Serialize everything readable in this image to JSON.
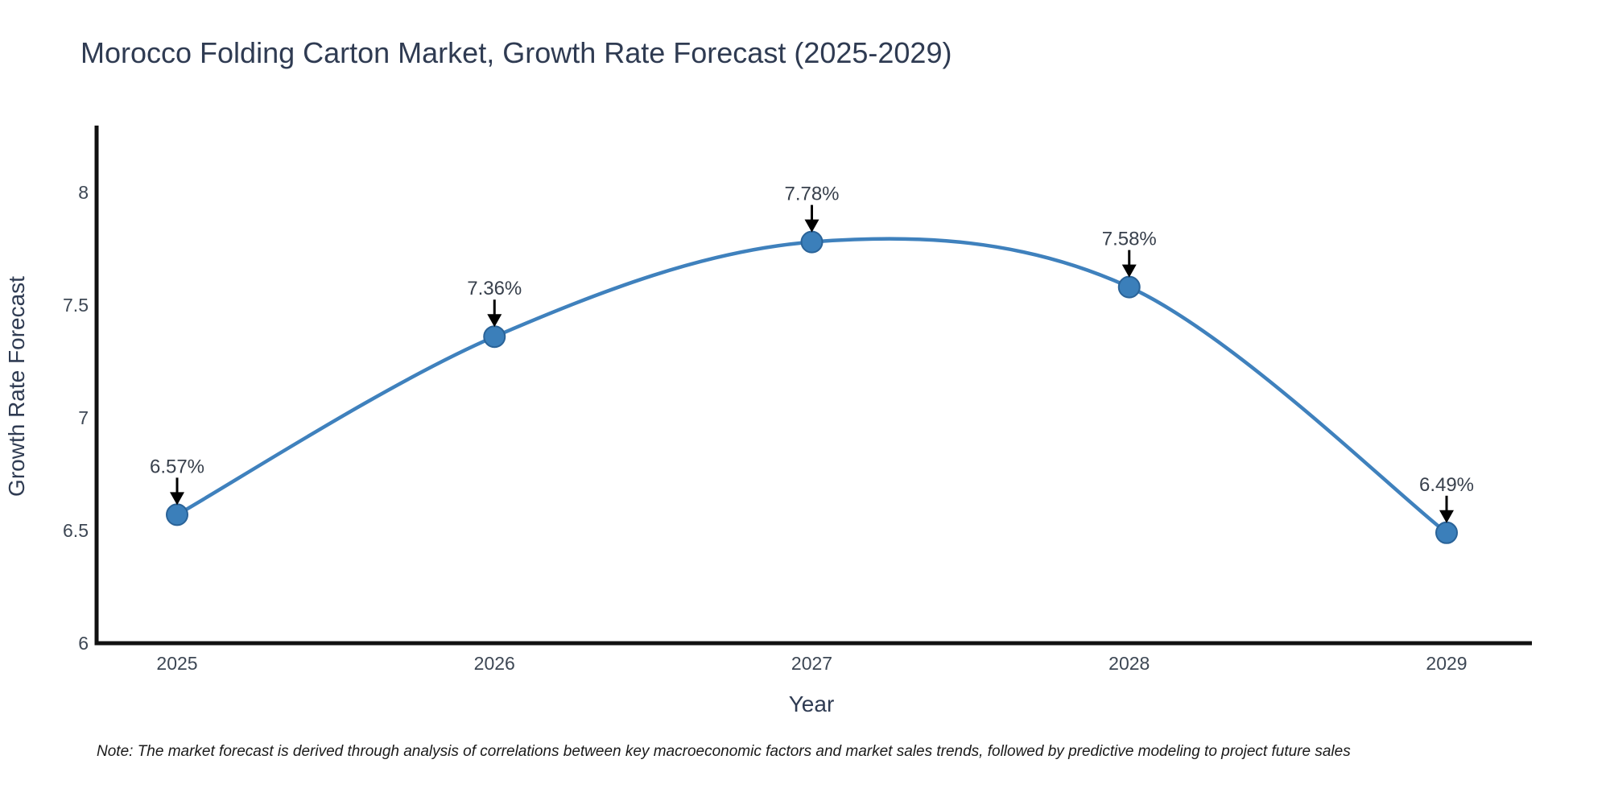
{
  "chart": {
    "note": "Note: The market forecast is derived through analysis of correlations between key macroeconomic factors and market sales trends, followed by predictive modeling to project future sales",
    "colors": {
      "line": "#3f81bd",
      "marker_fill": "#3b7fba",
      "marker_edge": "#2a6398",
      "axis": "#111111",
      "title_text": "#2f3b52",
      "tick_text": "#3d4754",
      "annotation_text": "#38404c",
      "note_text": "#1a1a1a",
      "arrow": "#000000"
    }
  },
  "chart_data": {
    "type": "line",
    "title": "Morocco Folding Carton Market, Growth Rate Forecast (2025-2029)",
    "x": [
      2025,
      2026,
      2027,
      2028,
      2029
    ],
    "series": [
      {
        "name": "Growth Rate Forecast",
        "values": [
          6.57,
          7.36,
          7.78,
          7.58,
          6.49
        ]
      }
    ],
    "point_labels": [
      "6.57%",
      "7.36%",
      "7.78%",
      "7.58%",
      "6.49%"
    ],
    "xlabel": "Year",
    "ylabel": "Growth Rate Forecast",
    "xticks": [
      "2025",
      "2026",
      "2027",
      "2028",
      "2029"
    ],
    "yticks": [
      6,
      6.5,
      7,
      7.5,
      8
    ],
    "ylim": [
      6,
      8.3
    ],
    "line_shape": "spline",
    "grid": false,
    "legend_position": "none",
    "markers": true
  }
}
